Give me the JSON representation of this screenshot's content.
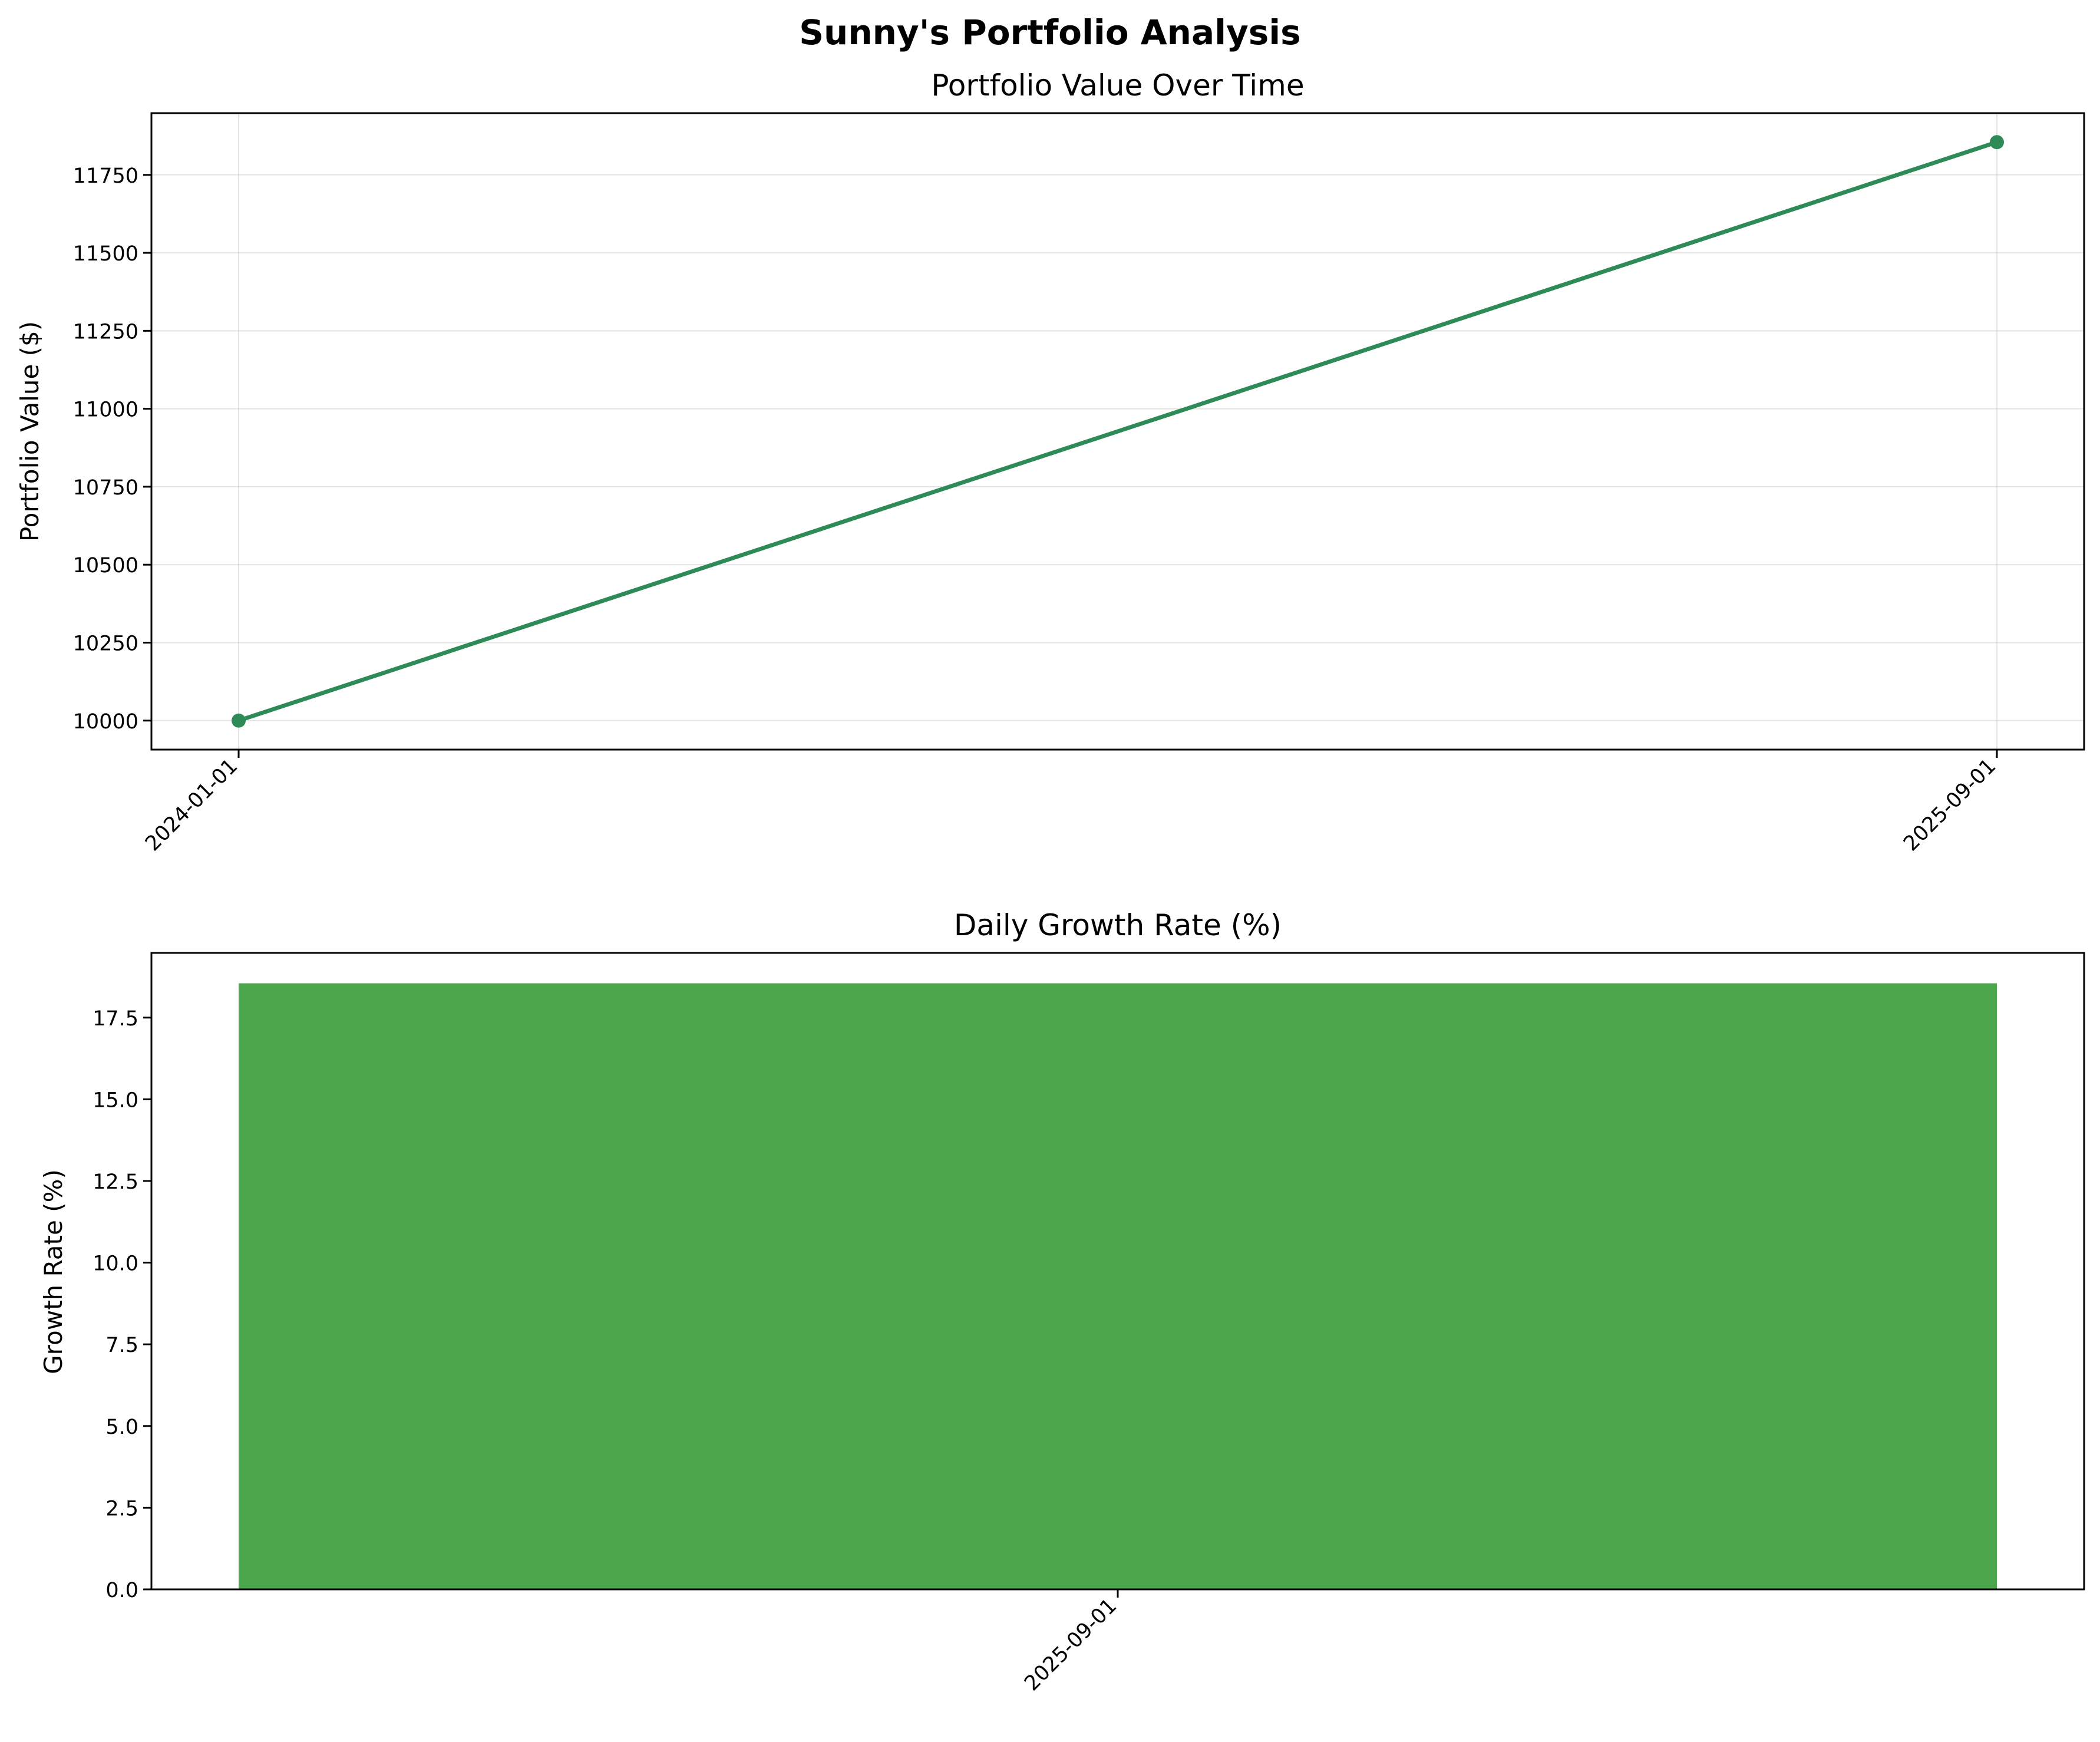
{
  "figure": {
    "title": "Sunny's Portfolio Analysis"
  },
  "chart_data": [
    {
      "type": "line",
      "title": "Portfolio Value Over Time",
      "xlabel": "",
      "ylabel": "Portfolio Value ($)",
      "x": [
        "2024-01-01",
        "2025-09-01"
      ],
      "series": [
        {
          "values": [
            10000,
            11855
          ],
          "color": "#2e8b57"
        }
      ],
      "ylim": [
        9907,
        11948
      ],
      "yticks": [
        10000,
        10250,
        10500,
        10750,
        11000,
        11250,
        11500,
        11750
      ],
      "xticks": [
        "2024-01-01",
        "2025-09-01"
      ],
      "grid": true,
      "marker": "circle"
    },
    {
      "type": "bar",
      "title": "Daily Growth Rate (%)",
      "xlabel": "",
      "ylabel": "Growth Rate (%)",
      "categories": [
        "2025-09-01"
      ],
      "values": [
        18.55
      ],
      "color": "#4ca64c",
      "ylim": [
        0,
        19.48
      ],
      "yticks": [
        "0.0",
        "2.5",
        "5.0",
        "7.5",
        "10.0",
        "12.5",
        "15.0",
        "17.5"
      ],
      "grid": false
    }
  ]
}
